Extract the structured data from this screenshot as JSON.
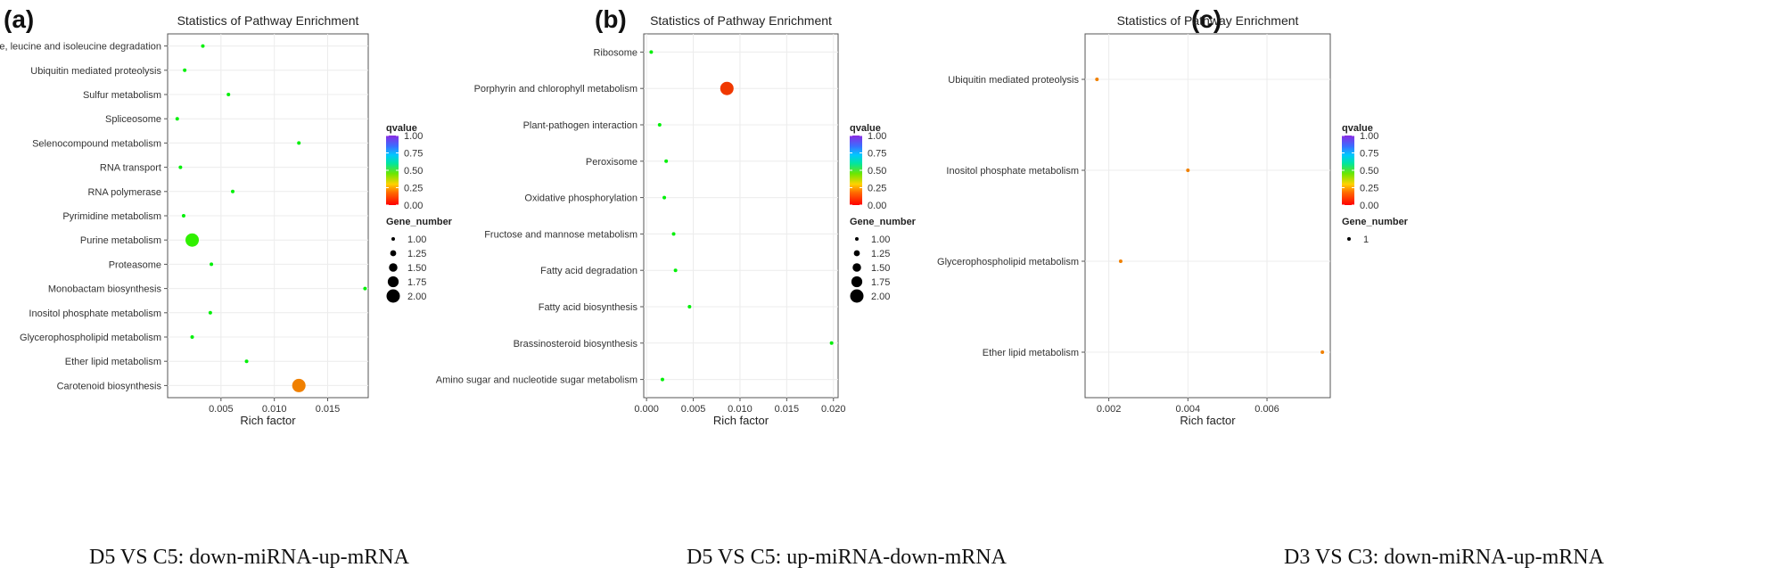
{
  "panels": [
    {
      "letter": "(a)",
      "caption": "D5 VS C5: down-miRNA-up-mRNA"
    },
    {
      "letter": "(b)",
      "caption": "D5 VS C5: up-miRNA-down-mRNA"
    },
    {
      "letter": "(c)",
      "caption": "D3 VS C3: down-miRNA-up-mRNA"
    }
  ],
  "chart_data": [
    {
      "type": "scatter",
      "title": "Statistics of Pathway Enrichment",
      "xlabel": "Rich factor",
      "ylabel": "",
      "xlim": [
        0.0,
        0.0188
      ],
      "xticks": [
        0.005,
        0.01,
        0.015
      ],
      "xtick_labels": [
        "0.005",
        "0.010",
        "0.015"
      ],
      "categories": [
        "Valine, leucine and isoleucine degradation",
        "Ubiquitin mediated proteolysis",
        "Sulfur metabolism",
        "Spliceosome",
        "Selenocompound metabolism",
        "RNA transport",
        "RNA polymerase",
        "Pyrimidine metabolism",
        "Purine metabolism",
        "Proteasome",
        "Monobactam biosynthesis",
        "Inositol phosphate metabolism",
        "Glycerophospholipid metabolism",
        "Ether lipid metabolism",
        "Carotenoid biosynthesis"
      ],
      "points": [
        {
          "pathway": "Valine, leucine and isoleucine degradation",
          "rich_factor": 0.0033,
          "qvalue": 0.45,
          "gene_number": 1
        },
        {
          "pathway": "Ubiquitin mediated proteolysis",
          "rich_factor": 0.0016,
          "qvalue": 0.45,
          "gene_number": 1
        },
        {
          "pathway": "Sulfur metabolism",
          "rich_factor": 0.0057,
          "qvalue": 0.45,
          "gene_number": 1
        },
        {
          "pathway": "Spliceosome",
          "rich_factor": 0.0009,
          "qvalue": 0.45,
          "gene_number": 1
        },
        {
          "pathway": "Selenocompound metabolism",
          "rich_factor": 0.0123,
          "qvalue": 0.45,
          "gene_number": 1
        },
        {
          "pathway": "RNA transport",
          "rich_factor": 0.0012,
          "qvalue": 0.45,
          "gene_number": 1
        },
        {
          "pathway": "RNA polymerase",
          "rich_factor": 0.0061,
          "qvalue": 0.45,
          "gene_number": 1
        },
        {
          "pathway": "Pyrimidine metabolism",
          "rich_factor": 0.0015,
          "qvalue": 0.45,
          "gene_number": 1
        },
        {
          "pathway": "Purine metabolism",
          "rich_factor": 0.0023,
          "qvalue": 0.4,
          "gene_number": 2
        },
        {
          "pathway": "Proteasome",
          "rich_factor": 0.0041,
          "qvalue": 0.45,
          "gene_number": 1
        },
        {
          "pathway": "Monobactam biosynthesis",
          "rich_factor": 0.0185,
          "qvalue": 0.45,
          "gene_number": 1
        },
        {
          "pathway": "Inositol phosphate metabolism",
          "rich_factor": 0.004,
          "qvalue": 0.45,
          "gene_number": 1
        },
        {
          "pathway": "Glycerophospholipid metabolism",
          "rich_factor": 0.0023,
          "qvalue": 0.45,
          "gene_number": 1
        },
        {
          "pathway": "Ether lipid metabolism",
          "rich_factor": 0.0074,
          "qvalue": 0.45,
          "gene_number": 1
        },
        {
          "pathway": "Carotenoid biosynthesis",
          "rich_factor": 0.0123,
          "qvalue": 0.12,
          "gene_number": 2
        }
      ],
      "color_legend": {
        "title": "qvalue",
        "ticks": [
          "0.00",
          "0.25",
          "0.50",
          "0.75",
          "1.00"
        ]
      },
      "size_legend": {
        "title": "Gene_number",
        "labels": [
          "1.00",
          "1.25",
          "1.50",
          "1.75",
          "2.00"
        ],
        "values": [
          1,
          1.25,
          1.5,
          1.75,
          2
        ]
      },
      "grid": true
    },
    {
      "type": "scatter",
      "title": "Statistics of Pathway Enrichment",
      "xlabel": "Rich factor",
      "ylabel": "",
      "xlim": [
        -0.0003,
        0.0205
      ],
      "xticks": [
        0.0,
        0.005,
        0.01,
        0.015,
        0.02
      ],
      "xtick_labels": [
        "0.000",
        "0.005",
        "0.010",
        "0.015",
        "0.020"
      ],
      "categories": [
        "Ribosome",
        "Porphyrin and chlorophyll metabolism",
        "Plant-pathogen interaction",
        "Peroxisome",
        "Oxidative phosphorylation",
        "Fructose and mannose metabolism",
        "Fatty acid degradation",
        "Fatty acid biosynthesis",
        "Brassinosteroid biosynthesis",
        "Amino sugar and nucleotide sugar metabolism"
      ],
      "points": [
        {
          "pathway": "Ribosome",
          "rich_factor": 0.0005,
          "qvalue": 0.45,
          "gene_number": 1
        },
        {
          "pathway": "Porphyrin and chlorophyll metabolism",
          "rich_factor": 0.0086,
          "qvalue": 0.05,
          "gene_number": 2
        },
        {
          "pathway": "Plant-pathogen interaction",
          "rich_factor": 0.0014,
          "qvalue": 0.45,
          "gene_number": 1
        },
        {
          "pathway": "Peroxisome",
          "rich_factor": 0.0021,
          "qvalue": 0.45,
          "gene_number": 1
        },
        {
          "pathway": "Oxidative phosphorylation",
          "rich_factor": 0.0019,
          "qvalue": 0.45,
          "gene_number": 1
        },
        {
          "pathway": "Fructose and mannose metabolism",
          "rich_factor": 0.0029,
          "qvalue": 0.45,
          "gene_number": 1
        },
        {
          "pathway": "Fatty acid degradation",
          "rich_factor": 0.0031,
          "qvalue": 0.45,
          "gene_number": 1
        },
        {
          "pathway": "Fatty acid biosynthesis",
          "rich_factor": 0.0046,
          "qvalue": 0.45,
          "gene_number": 1
        },
        {
          "pathway": "Brassinosteroid biosynthesis",
          "rich_factor": 0.0198,
          "qvalue": 0.45,
          "gene_number": 1
        },
        {
          "pathway": "Amino sugar and nucleotide sugar metabolism",
          "rich_factor": 0.0017,
          "qvalue": 0.45,
          "gene_number": 1
        }
      ],
      "color_legend": {
        "title": "qvalue",
        "ticks": [
          "0.00",
          "0.25",
          "0.50",
          "0.75",
          "1.00"
        ]
      },
      "size_legend": {
        "title": "Gene_number",
        "labels": [
          "1.00",
          "1.25",
          "1.50",
          "1.75",
          "2.00"
        ],
        "values": [
          1,
          1.25,
          1.5,
          1.75,
          2
        ]
      },
      "grid": true
    },
    {
      "type": "scatter",
      "title": "Statistics of Pathway Enrichment",
      "xlabel": "Rich factor",
      "ylabel": "",
      "xlim": [
        0.0014,
        0.0076
      ],
      "xticks": [
        0.002,
        0.004,
        0.006
      ],
      "xtick_labels": [
        "0.002",
        "0.004",
        "0.006"
      ],
      "categories": [
        "Ubiquitin mediated proteolysis",
        "Inositol phosphate metabolism",
        "Glycerophospholipid metabolism",
        "Ether lipid metabolism"
      ],
      "points": [
        {
          "pathway": "Ubiquitin mediated proteolysis",
          "rich_factor": 0.0017,
          "qvalue": 0.12,
          "gene_number": 1
        },
        {
          "pathway": "Inositol phosphate metabolism",
          "rich_factor": 0.004,
          "qvalue": 0.12,
          "gene_number": 1
        },
        {
          "pathway": "Glycerophospholipid metabolism",
          "rich_factor": 0.0023,
          "qvalue": 0.12,
          "gene_number": 1
        },
        {
          "pathway": "Ether lipid metabolism",
          "rich_factor": 0.0074,
          "qvalue": 0.12,
          "gene_number": 1
        }
      ],
      "color_legend": {
        "title": "qvalue",
        "ticks": [
          "0.00",
          "0.25",
          "0.50",
          "0.75",
          "1.00"
        ]
      },
      "size_legend": {
        "title": "Gene_number",
        "labels": [
          "1"
        ],
        "values": [
          1
        ]
      },
      "grid": true
    }
  ]
}
